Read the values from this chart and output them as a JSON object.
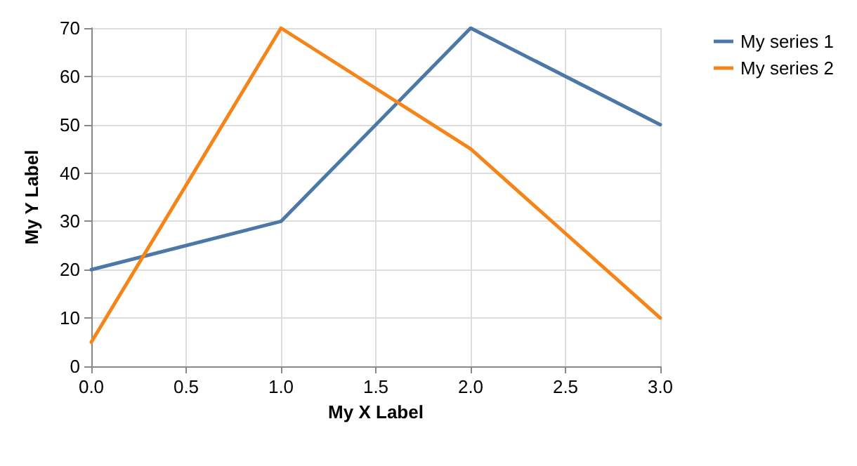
{
  "chart_data": {
    "type": "line",
    "xlabel": "My X Label",
    "ylabel": "My Y Label",
    "x": [
      0,
      1,
      2,
      3
    ],
    "series": [
      {
        "name": "My series 1",
        "color": "#4c78a8",
        "values": [
          20,
          30,
          70,
          50
        ]
      },
      {
        "name": "My series 2",
        "color": "#f58518",
        "values": [
          5,
          70,
          45,
          10
        ]
      }
    ],
    "xlim": [
      0,
      3
    ],
    "xticks": [
      {
        "value": 0,
        "label": "0.0"
      },
      {
        "value": 0.5,
        "label": "0.5"
      },
      {
        "value": 1,
        "label": "1.0"
      },
      {
        "value": 1.5,
        "label": "1.5"
      },
      {
        "value": 2,
        "label": "2.0"
      },
      {
        "value": 2.5,
        "label": "2.5"
      },
      {
        "value": 3,
        "label": "3.0"
      }
    ],
    "ylim": [
      0,
      70
    ],
    "yticks": [
      0,
      10,
      20,
      30,
      40,
      50,
      60,
      70
    ],
    "grid": true,
    "legend": "top right",
    "marker": "none",
    "line_style": "solid"
  }
}
